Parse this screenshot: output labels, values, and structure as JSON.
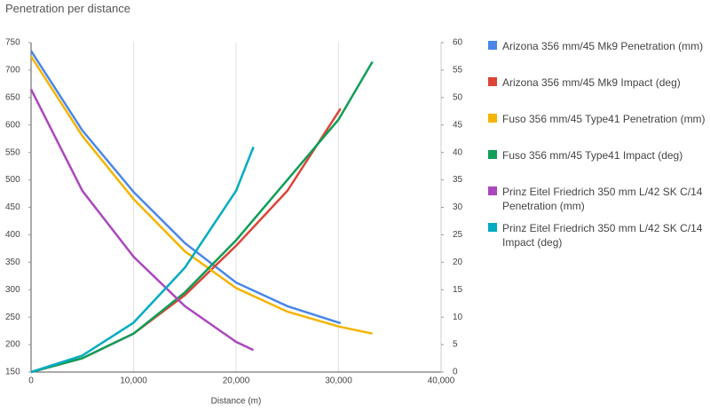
{
  "chart_data": {
    "type": "line",
    "title": "Penetration per distance",
    "x_label": "Distance (m)",
    "xlim": [
      0,
      40000
    ],
    "xticks": [
      0,
      {
        "value": 10000,
        "label": "10,000"
      },
      {
        "value": 20000,
        "label": "20,000"
      },
      {
        "value": 30000,
        "label": "30,000"
      },
      {
        "value": 40000,
        "label": "40,000"
      }
    ],
    "ylim": [
      150,
      750
    ],
    "yticks": [
      150,
      200,
      250,
      300,
      350,
      400,
      450,
      500,
      550,
      600,
      650,
      700,
      750
    ],
    "y2lim": [
      0,
      60
    ],
    "y2ticks": [
      0,
      5,
      10,
      15,
      20,
      25,
      30,
      35,
      40,
      45,
      50,
      55,
      60
    ],
    "grid": true,
    "series": [
      {
        "name": "Arizona 356 mm/45 Mk9 Penetration (mm)",
        "color": "#4a86e8",
        "axis": "y",
        "x": [
          0,
          5000,
          10000,
          15000,
          20000,
          25000,
          30200
        ],
        "values": [
          735,
          590,
          478,
          385,
          313,
          270,
          239
        ]
      },
      {
        "name": "Arizona 356 mm/45 Mk9 Impact (deg)",
        "color": "#db4437",
        "axis": "y2",
        "x": [
          0,
          5000,
          10000,
          15000,
          20000,
          25000,
          30200
        ],
        "values": [
          0,
          2.5,
          7,
          14,
          23,
          33,
          48
        ]
      },
      {
        "name": "Fuso 356 mm/45 Type41 Penetration (mm)",
        "color": "#f4b400",
        "axis": "y",
        "x": [
          0,
          5000,
          10000,
          15000,
          20000,
          25000,
          30000,
          33300
        ],
        "values": [
          725,
          580,
          465,
          370,
          303,
          260,
          233,
          220
        ]
      },
      {
        "name": "Fuso 356 mm/45 Type41 Impact (deg)",
        "color": "#0f9d58",
        "axis": "y2",
        "x": [
          0,
          5000,
          10000,
          15000,
          20000,
          25000,
          30000,
          33300
        ],
        "values": [
          0,
          2.5,
          7,
          14.5,
          24,
          35,
          46,
          56.5
        ]
      },
      {
        "name": "Prinz Eitel Friedrich 350 mm L/42 SK C/14 Penetration (mm)",
        "color": "#ab47bc",
        "axis": "y",
        "x": [
          0,
          5000,
          10000,
          15000,
          20000,
          21700
        ],
        "values": [
          665,
          480,
          360,
          270,
          205,
          190
        ]
      },
      {
        "name": "Prinz Eitel Friedrich 350 mm L/42 SK C/14 Impact (deg)",
        "color": "#00acc1",
        "axis": "y2",
        "x": [
          0,
          5000,
          10000,
          15000,
          20000,
          21700
        ],
        "values": [
          0,
          3,
          9,
          19,
          33,
          41
        ]
      }
    ]
  }
}
